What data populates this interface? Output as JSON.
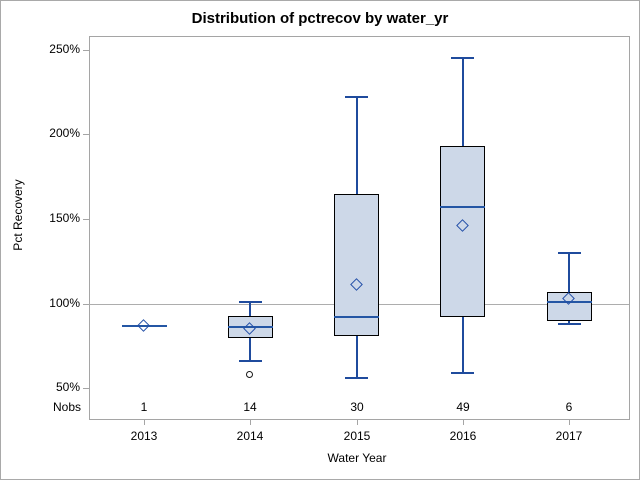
{
  "chart_data": {
    "type": "boxplot",
    "title": "Distribution of pctrecov by water_yr",
    "xlabel": "Water Year",
    "ylabel": "Pct Recovery",
    "nobs_label": "Nobs",
    "ylim": [
      32,
      258
    ],
    "yticks": [
      50,
      100,
      150,
      200,
      250
    ],
    "ytick_suffix": "%",
    "reference_line": 100,
    "grid": "off",
    "legend_position": "none",
    "categories": [
      "2013",
      "2014",
      "2015",
      "2016",
      "2017"
    ],
    "nobs": [
      1,
      14,
      30,
      49,
      6
    ],
    "groups": [
      {
        "label": "2013",
        "nobs": 1,
        "min": 87,
        "q1": 87,
        "median": 87,
        "q3": 87,
        "max": 87,
        "mean": 87,
        "outliers": []
      },
      {
        "label": "2014",
        "nobs": 14,
        "min": 66,
        "q1": 80,
        "median": 86,
        "q3": 93,
        "max": 101,
        "mean": 85,
        "outliers": [
          58
        ]
      },
      {
        "label": "2015",
        "nobs": 30,
        "min": 56,
        "q1": 81,
        "median": 92,
        "q3": 165,
        "max": 222,
        "mean": 111,
        "outliers": []
      },
      {
        "label": "2016",
        "nobs": 49,
        "min": 59,
        "q1": 92,
        "median": 157,
        "q3": 193,
        "max": 245,
        "mean": 146,
        "outliers": []
      },
      {
        "label": "2017",
        "nobs": 6,
        "min": 88,
        "q1": 90,
        "median": 101,
        "q3": 107,
        "max": 130,
        "mean": 103,
        "outliers": []
      }
    ],
    "colors": {
      "box_fill": "#CDD8E8",
      "box_border": "#000000",
      "median": "#2456A4",
      "whisker": "#1F4B9D",
      "mean_marker": "#2450A8",
      "outlier_border": "#1A1A1A",
      "axis": "#A5A5A5",
      "reference_line": "#ADADAD",
      "frame_border": "#A9A9A9",
      "text": "#000000"
    }
  }
}
